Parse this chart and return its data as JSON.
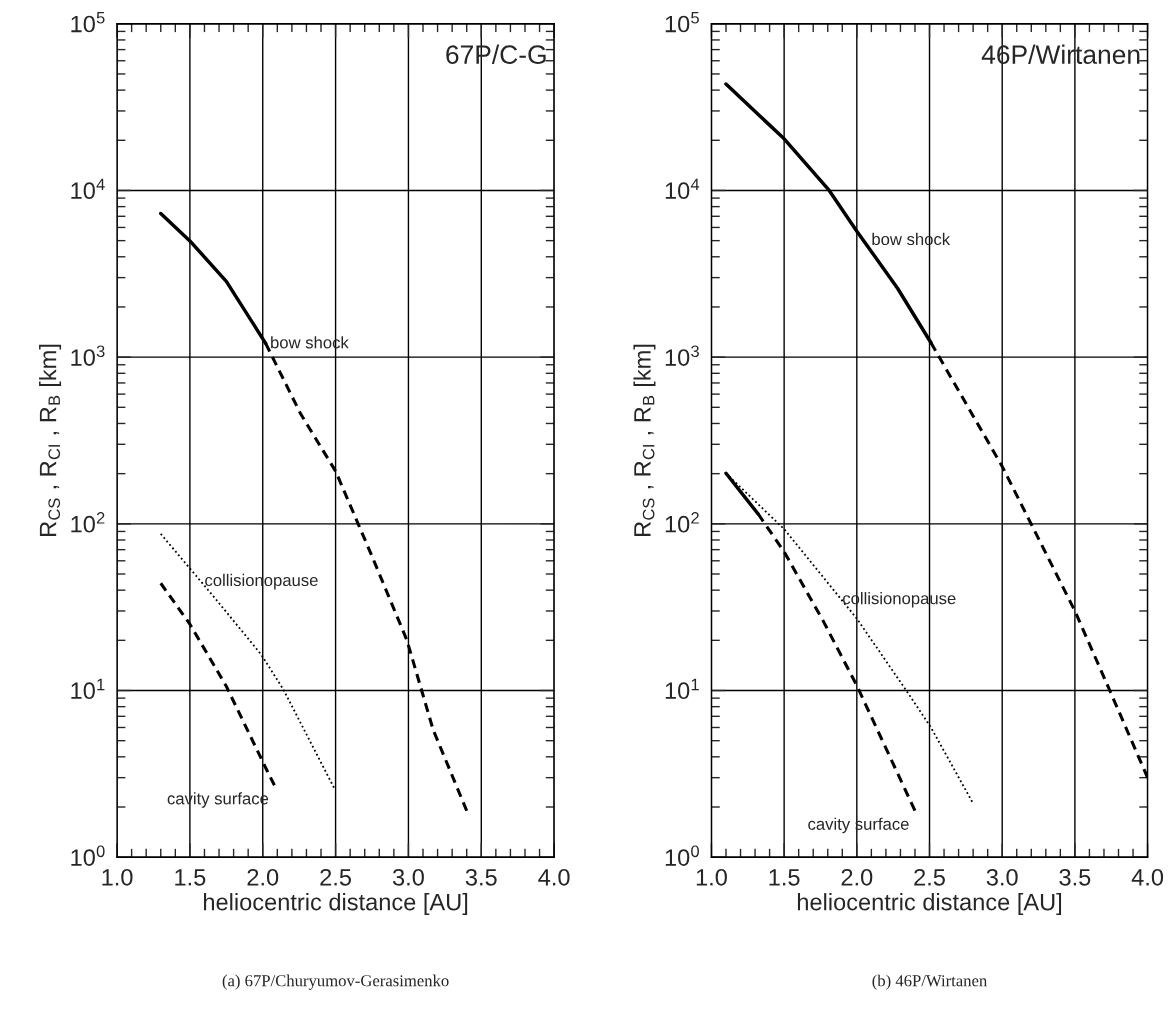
{
  "chart_data": [
    {
      "type": "line",
      "title": "67P/C-G",
      "xlabel": "heliocentric distance [AU]",
      "ylabel": "R$_{CS}$ , R$_{CI}$ , R$_{B}$ [km]",
      "log": "y",
      "grid": true,
      "xlim": [
        1.0,
        4.0
      ],
      "xticks": [
        {
          "value": 1.0,
          "label": "1.0"
        },
        1.5,
        {
          "value": 2.0,
          "label": "2.0"
        },
        2.5,
        {
          "value": 3.0,
          "label": "3.0"
        },
        3.5,
        {
          "value": 4.0,
          "label": "4.0"
        }
      ],
      "ylim": [
        1,
        100000
      ],
      "yticks": [
        {
          "value": 1,
          "label": "10$^{0}$"
        },
        {
          "value": 10,
          "label": "10$^{1}$"
        },
        {
          "value": 100,
          "label": "10$^{2}$"
        },
        {
          "value": 1000,
          "label": "10$^{3}$"
        },
        {
          "value": 10000,
          "label": "10$^{4}$"
        },
        {
          "value": 100000,
          "label": "10$^{5}$"
        }
      ],
      "series": [
        {
          "color": "#000000",
          "line_style": "solid",
          "x": [
            1.3,
            1.5,
            1.75,
            2.02
          ],
          "values": [
            7270,
            4980,
            2850,
            1210
          ]
        },
        {
          "color": "#000000",
          "line_style": "dashed",
          "x": [
            2.02,
            2.26,
            2.5,
            2.74,
            2.99,
            3.17,
            3.4
          ],
          "values": [
            1210,
            457,
            207,
            67,
            20,
            5.8,
            1.9
          ]
        },
        {
          "color": "#000000",
          "line_style": "dotted",
          "x": [
            1.3,
            1.67,
            1.99,
            2.14,
            2.49
          ],
          "values": [
            87,
            36,
            16.4,
            10.2,
            2.6
          ]
        },
        {
          "color": "#000000",
          "line_style": "dashed",
          "x": [
            1.3,
            1.5,
            1.75,
            2.03,
            2.08
          ],
          "values": [
            44,
            25,
            10.6,
            3.3,
            2.7
          ]
        }
      ],
      "annotations": [
        {
          "text": "bow shock",
          "x": 2.05,
          "y": 1200
        },
        {
          "text": "collisionopause",
          "x": 1.6,
          "y": 45
        },
        {
          "text": "cavity surface",
          "x": 2.08,
          "y": 2.7
        },
        "(a) 67P/Churyumov-Gerasimenko"
      ]
    },
    {
      "type": "line",
      "title": "46P/Wirtanen",
      "xlabel": "heliocentric distance [AU]",
      "ylabel": "R$_{CS}$ , R$_{CI}$ , R$_{B}$ [km]",
      "log": "y",
      "grid": true,
      "xlim": [
        1.0,
        4.0
      ],
      "xticks": [
        {
          "value": 1.0,
          "label": "1.0"
        },
        1.5,
        {
          "value": 2.0,
          "label": "2.0"
        },
        2.5,
        {
          "value": 3.0,
          "label": "3.0"
        },
        3.5,
        {
          "value": 4.0,
          "label": "4.0"
        }
      ],
      "ylim": [
        1,
        100000
      ],
      "yticks": [
        {
          "value": 1,
          "label": "10$^{0}$"
        },
        {
          "value": 10,
          "label": "10$^{1}$"
        },
        {
          "value": 100,
          "label": "10$^{2}$"
        },
        {
          "value": 1000,
          "label": "10$^{3}$"
        },
        {
          "value": 10000,
          "label": "10$^{4}$"
        },
        {
          "value": 100000,
          "label": "10$^{5}$"
        }
      ],
      "series": [
        {
          "color": "#000000",
          "line_style": "solid",
          "x": [
            1.1,
            1.5,
            1.81,
            2.0,
            2.28,
            2.51
          ],
          "values": [
            43500,
            20400,
            10000,
            5700,
            2590,
            1220
          ]
        },
        {
          "color": "#000000",
          "line_style": "dashed",
          "x": [
            2.51,
            3.0,
            3.5,
            3.74,
            4.0
          ],
          "values": [
            1220,
            221,
            30,
            10,
            3
          ]
        },
        {
          "color": "#000000",
          "line_style": "dotted",
          "x": [
            1.1,
            1.5,
            2.0,
            2.34,
            2.51,
            2.8
          ],
          "values": [
            201,
            93,
            27,
            10,
            6,
            2.1
          ]
        },
        {
          "color": "#000000",
          "line_style": "solid",
          "x": [
            1.1,
            1.32
          ],
          "values": [
            201,
            115
          ]
        },
        {
          "color": "#000000",
          "line_style": "dashed",
          "x": [
            1.32,
            1.5,
            1.77,
            2.0,
            2.4
          ],
          "values": [
            115,
            68,
            26,
            10.7,
            1.9
          ]
        }
      ],
      "annotations": [
        {
          "text": "bow shock",
          "x": 2.1,
          "y": 5000
        },
        {
          "text": "collisionopause",
          "x": 1.9,
          "y": 35
        },
        {
          "text": "cavity surface",
          "x": 2.4,
          "y": 1.9
        },
        "(b) 46P/Wirtanen"
      ]
    }
  ]
}
